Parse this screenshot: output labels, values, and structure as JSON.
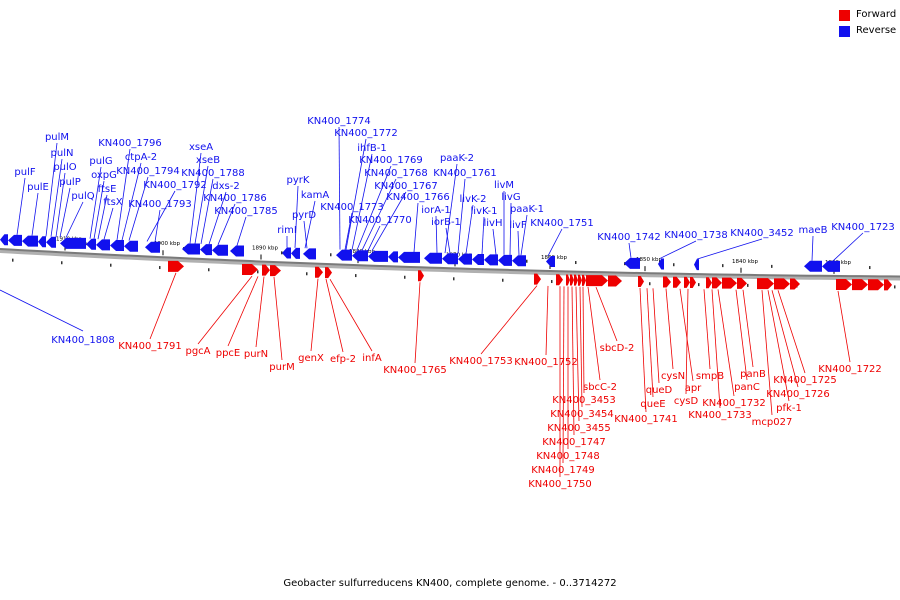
{
  "legend": {
    "forward": {
      "label": "Forward",
      "color": "#ee0000"
    },
    "reverse": {
      "label": "Reverse",
      "color": "#1111ee"
    }
  },
  "caption": "Geobacter sulfurreducens KN400, complete genome. - 0..3714272",
  "scale_labels": [
    "1910 kbp",
    "1900 kbp",
    "1890 kbp",
    "1880 kbp",
    "1870 kbp",
    "1860 kbp",
    "1850 kbp",
    "1840 kbp",
    "1830 kbp"
  ],
  "reverse_genes": [
    "pulF",
    "pulE",
    "pulM",
    "pulN",
    "pulO",
    "pulP",
    "pulQ",
    "pulG",
    "oxpG",
    "ftsE",
    "ftsX",
    "KN400_1796",
    "ctpA-2",
    "KN400_1794",
    "KN400_1792",
    "KN400_1793",
    "xseA",
    "xseB",
    "KN400_1788",
    "dxs-2",
    "KN400_1786",
    "KN400_1785",
    "rimI",
    "pyrK",
    "kamA",
    "pyrD",
    "KN400_1774",
    "KN400_1772",
    "ihfB-1",
    "KN400_1769",
    "KN400_1768",
    "KN400_1767",
    "KN400_1773",
    "KN400_1770",
    "KN400_1766",
    "paaK-2",
    "KN400_1761",
    "iorA-1",
    "iorB-1",
    "livK-2",
    "livK-1",
    "livH",
    "livM",
    "livG",
    "paaK-1",
    "livF",
    "KN400_1751",
    "KN400_1742",
    "KN400_1738",
    "KN400_3452",
    "maeB",
    "KN400_1723",
    "KN400_1808"
  ],
  "forward_genes": [
    "KN400_1791",
    "pgcA",
    "ppcE",
    "purN",
    "purM",
    "genX",
    "efp-2",
    "infA",
    "KN400_1765",
    "KN400_1753",
    "KN400_1752",
    "sbcD-2",
    "sbcC-2",
    "KN400_3453",
    "KN400_3454",
    "KN400_3455",
    "KN400_1747",
    "KN400_1748",
    "KN400_1749",
    "KN400_1750",
    "queD",
    "queE",
    "KN400_1741",
    "cysN",
    "apr",
    "cysD",
    "smpB",
    "KN400_1732",
    "KN400_1733",
    "panB",
    "panC",
    "KN400_1725",
    "KN400_1726",
    "pfk-1",
    "mcp027",
    "KN400_1722"
  ]
}
